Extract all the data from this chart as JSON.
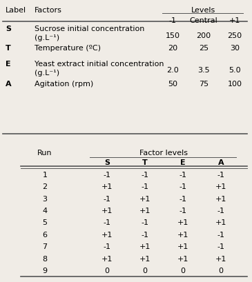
{
  "bg_color": "#f0ece6",
  "top_table": {
    "rows": [
      {
        "label": "S",
        "factor_line1": "Sucrose initial concentration",
        "factor_line2": "(g.L⁻¹)",
        "m1": "150",
        "central": "200",
        "p1": "250",
        "two_line": true
      },
      {
        "label": "T",
        "factor_line1": "Temperature (ºC)",
        "factor_line2": "",
        "m1": "20",
        "central": "25",
        "p1": "30",
        "two_line": false
      },
      {
        "label": "E",
        "factor_line1": "Yeast extract initial concentration",
        "factor_line2": "(g.L⁻¹)",
        "m1": "2.0",
        "central": "3.5",
        "p1": "5.0",
        "two_line": true
      },
      {
        "label": "A",
        "factor_line1": "Agitation (rpm)",
        "factor_line2": "",
        "m1": "50",
        "central": "75",
        "p1": "100",
        "two_line": false
      }
    ]
  },
  "bottom_table": {
    "col_headers": [
      "S",
      "T",
      "E",
      "A"
    ],
    "rows": [
      [
        "1",
        "-1",
        "-1",
        "-1",
        "-1"
      ],
      [
        "2",
        "+1",
        "-1",
        "-1",
        "+1"
      ],
      [
        "3",
        "-1",
        "+1",
        "-1",
        "+1"
      ],
      [
        "4",
        "+1",
        "+1",
        "-1",
        "-1"
      ],
      [
        "5",
        "-1",
        "-1",
        "+1",
        "+1"
      ],
      [
        "6",
        "+1",
        "-1",
        "+1",
        "-1"
      ],
      [
        "7",
        "-1",
        "+1",
        "+1",
        "-1"
      ],
      [
        "8",
        "+1",
        "+1",
        "+1",
        "+1"
      ],
      [
        "9",
        "0",
        "0",
        "0",
        "0"
      ]
    ]
  }
}
